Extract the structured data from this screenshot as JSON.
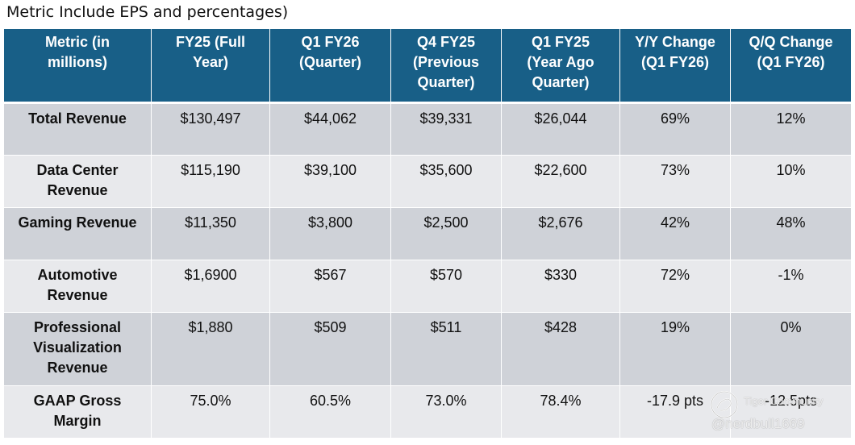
{
  "caption": "Metric Include EPS and percentages)",
  "table": {
    "headers": [
      [
        "Metric (in",
        "millions)"
      ],
      [
        "FY25 (Full",
        "Year)"
      ],
      [
        "Q1 FY26",
        "(Quarter)"
      ],
      [
        "Q4 FY25",
        "(Previous",
        "Quarter)"
      ],
      [
        "Q1 FY25",
        "(Year Ago",
        "Quarter)"
      ],
      [
        "Y/Y Change",
        "(Q1 FY26)"
      ],
      [
        "Q/Q Change",
        "(Q1 FY26)"
      ]
    ],
    "rows": [
      {
        "metric": [
          "Total Revenue"
        ],
        "values": [
          "$130,497",
          "$44,062",
          "$39,331",
          "$26,044",
          "69%",
          "12%"
        ]
      },
      {
        "metric": [
          "Data Center",
          "Revenue"
        ],
        "values": [
          "$115,190",
          "$39,100",
          "$35,600",
          "$22,600",
          "73%",
          "10%"
        ]
      },
      {
        "metric": [
          "Gaming Revenue"
        ],
        "values": [
          "$11,350",
          "$3,800",
          "$2,500",
          "$2,676",
          "42%",
          "48%"
        ]
      },
      {
        "metric": [
          "Automotive",
          "Revenue"
        ],
        "values": [
          "$1,6900",
          "$567",
          "$570",
          "$330",
          "72%",
          "-1%"
        ]
      },
      {
        "metric": [
          "Professional",
          "Visualization",
          "Revenue"
        ],
        "values": [
          "$1,880",
          "$509",
          "$511",
          "$428",
          "19%",
          "0%"
        ]
      },
      {
        "metric": [
          "GAAP Gross",
          "Margin"
        ],
        "values": [
          "75.0%",
          "60.5%",
          "73.0%",
          "78.4%",
          "-17.9 pts",
          "-12.5pts"
        ]
      }
    ]
  },
  "watermark": {
    "name": "Tiger Community",
    "handle": "@nerdbull1669",
    "icon": "tiger-logo-icon"
  },
  "colors": {
    "header_bg": "#185f87",
    "row_dark": "#cfd2d8",
    "row_light": "#e8e9ec"
  }
}
